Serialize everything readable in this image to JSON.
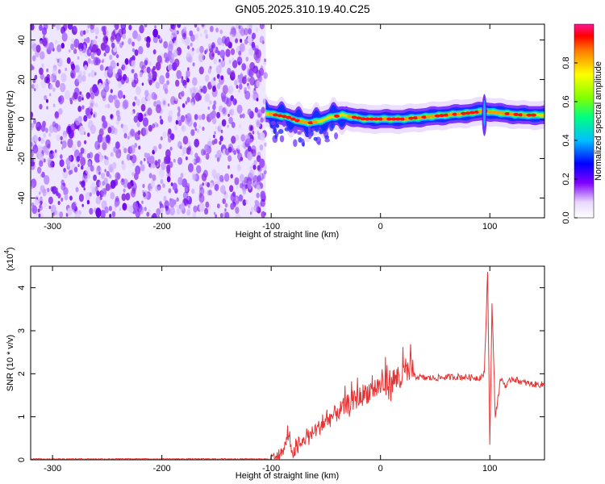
{
  "title": "GN05.2025.310.19.40.C25",
  "chart_data": [
    {
      "type": "heatmap",
      "title": "GN05.2025.310.19.40.C25",
      "xlabel": "Height of straight line (km)",
      "ylabel": "Frequency (Hz)",
      "xlim": [
        -320,
        150
      ],
      "ylim": [
        -50,
        48
      ],
      "x_ticks": [
        "-300",
        "-200",
        "-100",
        "0",
        "100"
      ],
      "y_ticks": [
        "-40",
        "-20",
        "0",
        "20",
        "40"
      ],
      "colorbar": {
        "label": "Normalized spectral amplitude",
        "range": [
          0,
          1
        ],
        "ticks": [
          "0.0",
          "0.2",
          "0.4",
          "0.6",
          "0.8"
        ]
      },
      "noise_region_x": [
        -320,
        -105
      ],
      "ridge": [
        {
          "x": -105,
          "f": 3
        },
        {
          "x": -95,
          "f": 2
        },
        {
          "x": -85,
          "f": 1
        },
        {
          "x": -75,
          "f": -1
        },
        {
          "x": -65,
          "f": -2
        },
        {
          "x": -55,
          "f": -1
        },
        {
          "x": -45,
          "f": 1
        },
        {
          "x": -35,
          "f": 2
        },
        {
          "x": -25,
          "f": 1
        },
        {
          "x": -15,
          "f": 0
        },
        {
          "x": 0,
          "f": 0
        },
        {
          "x": 20,
          "f": 0
        },
        {
          "x": 40,
          "f": 1
        },
        {
          "x": 60,
          "f": 2
        },
        {
          "x": 80,
          "f": 3
        },
        {
          "x": 95,
          "f": 4
        },
        {
          "x": 110,
          "f": 3
        },
        {
          "x": 130,
          "f": 2
        },
        {
          "x": 150,
          "f": 2
        }
      ]
    },
    {
      "type": "line",
      "xlabel": "Height of straight line (km)",
      "ylabel": "SNR (10 * v/v)",
      "y_multiplier": "(x10",
      "y_multiplier_exp": "4",
      "xlim": [
        -320,
        150
      ],
      "ylim": [
        0,
        4.5
      ],
      "x_ticks": [
        "-300",
        "-200",
        "-100",
        "0",
        "100"
      ],
      "y_ticks": [
        "0",
        "1",
        "2",
        "3",
        "4"
      ],
      "line_color": "#e63232",
      "series": [
        {
          "x": [
            -320,
            -100,
            -90,
            -85,
            -80,
            -75,
            -70,
            -60,
            -50,
            -40,
            -30,
            -20,
            -10,
            0,
            10,
            20,
            30,
            40,
            50,
            60,
            70,
            80,
            90,
            95,
            98,
            100,
            102,
            105,
            110,
            115,
            120,
            130,
            140,
            150
          ],
          "values": [
            0.02,
            0.02,
            0.05,
            0.5,
            0.1,
            0.2,
            0.4,
            0.6,
            0.8,
            1.0,
            1.2,
            1.35,
            1.5,
            1.6,
            1.7,
            1.8,
            1.95,
            1.9,
            1.9,
            1.92,
            1.93,
            1.92,
            1.9,
            2.0,
            4.4,
            0.3,
            3.6,
            1.0,
            1.9,
            1.7,
            1.9,
            1.8,
            1.75,
            1.75
          ]
        }
      ]
    }
  ]
}
